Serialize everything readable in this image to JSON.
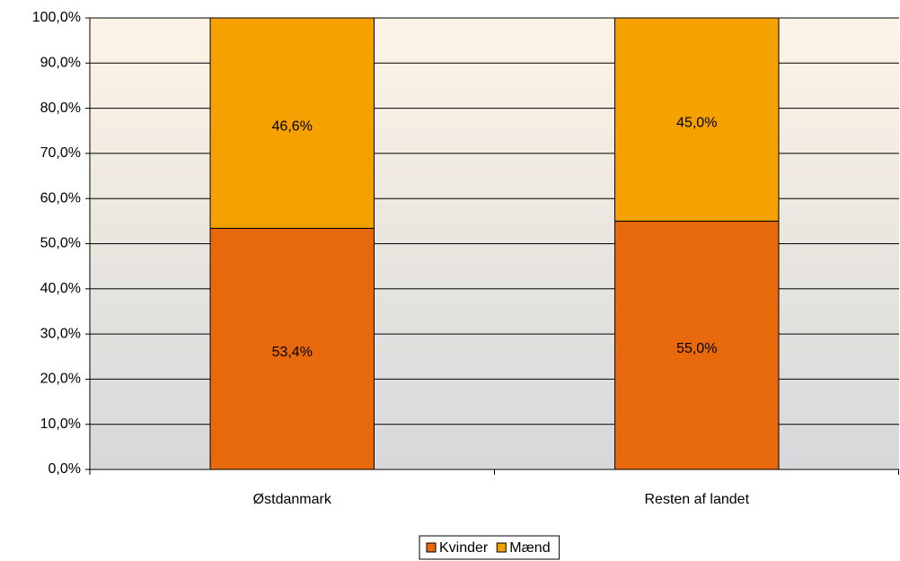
{
  "chart_data": {
    "type": "stacked_bar",
    "categories": [
      "Østdanmark",
      "Resten af landet"
    ],
    "series": [
      {
        "name": "Kvinder",
        "color": "#e8690c",
        "values": [
          53.4,
          55.0
        ],
        "value_labels": [
          "53,4%",
          "55,0%"
        ]
      },
      {
        "name": "Mænd",
        "color": "#f5a100",
        "values": [
          46.6,
          45.0
        ],
        "value_labels": [
          "46,6%",
          "45,0%"
        ]
      }
    ],
    "ylim": [
      0,
      100
    ],
    "yticks": [
      {
        "value": 0,
        "label": "0,0%"
      },
      {
        "value": 10,
        "label": "10,0%"
      },
      {
        "value": 20,
        "label": "20,0%"
      },
      {
        "value": 30,
        "label": "30,0%"
      },
      {
        "value": 40,
        "label": "40,0%"
      },
      {
        "value": 50,
        "label": "50,0%"
      },
      {
        "value": 60,
        "label": "60,0%"
      },
      {
        "value": 70,
        "label": "70,0%"
      },
      {
        "value": 80,
        "label": "80,0%"
      },
      {
        "value": 90,
        "label": "90,0%"
      },
      {
        "value": 100,
        "label": "100,0%"
      }
    ],
    "grid": true,
    "legend": "bottom"
  }
}
